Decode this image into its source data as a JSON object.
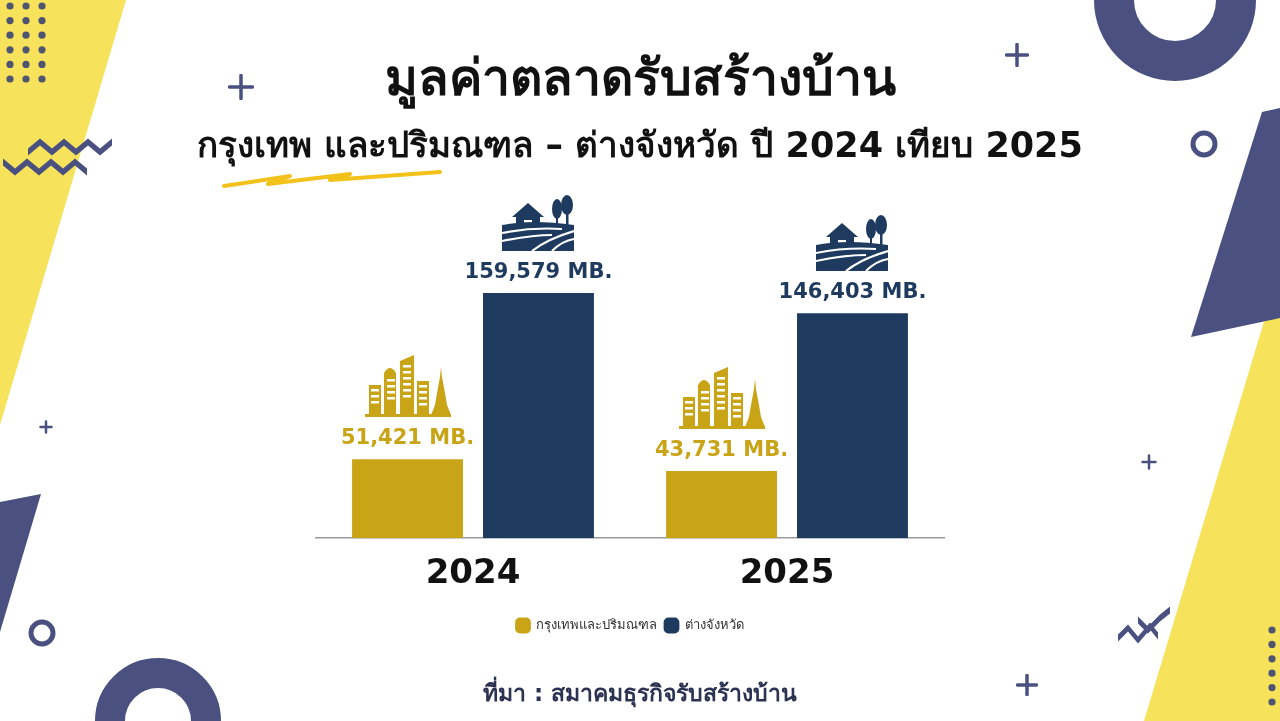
{
  "chart_data": {
    "type": "bar",
    "title": "มูลค่าตลาดรับสร้างบ้าน",
    "subtitle": "กรุงเทพ และปริมณฑล – ต่างจังหวัด ปี 2024 เทียบ 2025",
    "categories": [
      "2024",
      "2025"
    ],
    "series": [
      {
        "name": "กรุงเทพและปริมณฑล",
        "color": "#c9a416",
        "values": [
          51421,
          43731
        ],
        "value_labels": [
          "51,421 MB.",
          "43,731 MB."
        ]
      },
      {
        "name": "ต่างจังหวัด",
        "color": "#1e3a5f",
        "values": [
          159579,
          146403
        ],
        "value_labels": [
          "159,579 MB.",
          "146,403 MB."
        ]
      }
    ],
    "legend": "bottom",
    "annotations": [
      "ที่มา : สมาคมธุรกิจรับสร้างบ้าน"
    ]
  }
}
